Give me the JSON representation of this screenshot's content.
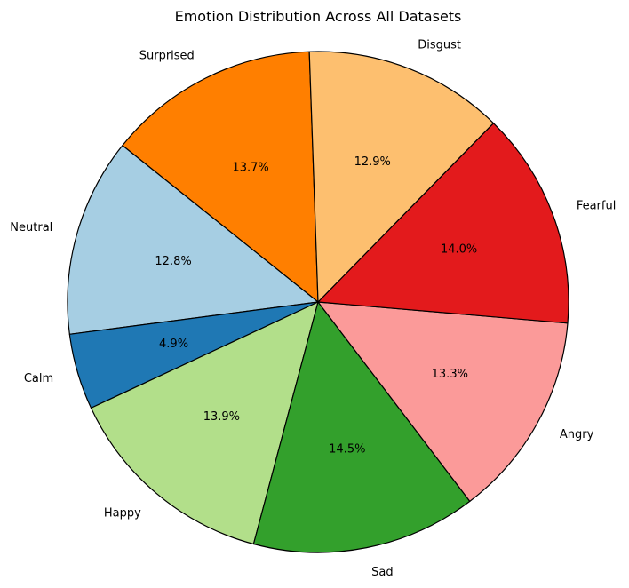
{
  "chart_data": {
    "type": "pie",
    "title": "Emotion Distribution Across All Datasets",
    "start_angle_deg": 92,
    "direction": "counterclockwise",
    "slices": [
      {
        "label": "Surprised",
        "value": 13.7,
        "pct_label": "13.7%",
        "color": "#ff7f00"
      },
      {
        "label": "Neutral",
        "value": 12.8,
        "pct_label": "12.8%",
        "color": "#a6cee3"
      },
      {
        "label": "Calm",
        "value": 4.9,
        "pct_label": "4.9%",
        "color": "#1f78b4"
      },
      {
        "label": "Happy",
        "value": 13.9,
        "pct_label": "13.9%",
        "color": "#b2df8a"
      },
      {
        "label": "Sad",
        "value": 14.5,
        "pct_label": "14.5%",
        "color": "#33a02c"
      },
      {
        "label": "Angry",
        "value": 13.3,
        "pct_label": "13.3%",
        "color": "#fb9a99"
      },
      {
        "label": "Fearful",
        "value": 14.0,
        "pct_label": "14.0%",
        "color": "#e31a1c"
      },
      {
        "label": "Disgust",
        "value": 12.9,
        "pct_label": "12.9%",
        "color": "#fdbf6f"
      }
    ],
    "edge_color": "#000000"
  }
}
